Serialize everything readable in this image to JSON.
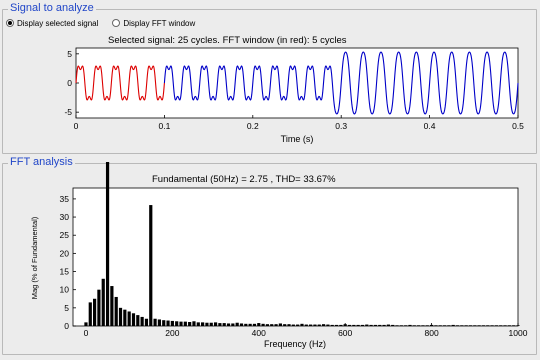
{
  "signal_panel": {
    "legend": "Signal to analyze",
    "radio_display_signal": "Display selected signal",
    "radio_display_fft": "Display FFT window",
    "selected": "signal",
    "plot_title": "Selected signal: 25 cycles. FFT window (in red): 5 cycles"
  },
  "fft_panel": {
    "legend": "FFT analysis",
    "plot_title": "Fundamental (50Hz) = 2.75 , THD= 33.67%"
  },
  "colors": {
    "fft_window": "#dd0000",
    "signal": "#0000c8",
    "legend_text": "#2146c8",
    "bars": "#000000"
  },
  "chart_data": [
    {
      "type": "line",
      "title": "Selected signal: 25 cycles. FFT window (in red): 5 cycles",
      "xlabel": "Time (s)",
      "ylabel": "",
      "xlim": [
        0,
        0.5
      ],
      "ylim": [
        -6,
        6
      ],
      "x_ticks": [
        0,
        0.1,
        0.2,
        0.3,
        0.4,
        0.5
      ],
      "x_tick_labels": [
        "0",
        "0.1",
        "0.2",
        "0.3",
        "0.4",
        "0.5"
      ],
      "y_ticks": [
        -5,
        0,
        5
      ],
      "y_tick_labels": [
        "-5",
        "0",
        "5"
      ],
      "series": [
        {
          "role": "fft-window",
          "t_start": 0.0,
          "t_end": 0.1,
          "frequency_hz": 50,
          "amplitude": 3.2,
          "harmonic3_amplitude": 0.9
        },
        {
          "role": "signal",
          "t_start": 0.1,
          "t_end": 0.29,
          "frequency_hz": 50,
          "amplitude": 3.2,
          "harmonic3_amplitude": 0.9
        },
        {
          "role": "signal",
          "t_start": 0.29,
          "t_end": 0.5,
          "frequency_hz": 50,
          "amplitude": 5.6,
          "harmonic3_amplitude": 0.3
        }
      ]
    },
    {
      "type": "bar",
      "title": "Fundamental (50Hz) = 2.75 , THD= 33.67%",
      "xlabel": "Frequency (Hz)",
      "ylabel": "Mag (% of Fundamental)",
      "xlim": [
        -30,
        1000
      ],
      "ylim": [
        0,
        38
      ],
      "x_ticks": [
        0,
        200,
        400,
        600,
        800,
        1000
      ],
      "x_tick_labels": [
        "0",
        "200",
        "400",
        "600",
        "800",
        "1000"
      ],
      "y_ticks": [
        0,
        5,
        10,
        15,
        20,
        25,
        30,
        35
      ],
      "y_tick_labels": [
        "0",
        "5",
        "10",
        "15",
        "20",
        "25",
        "30",
        "35"
      ],
      "bars": [
        {
          "f": 0,
          "v": 1.0
        },
        {
          "f": 10,
          "v": 6.5
        },
        {
          "f": 20,
          "v": 7.5
        },
        {
          "f": 30,
          "v": 10.0
        },
        {
          "f": 40,
          "v": 13.0
        },
        {
          "f": 50,
          "v": 100.0
        },
        {
          "f": 60,
          "v": 11.0
        },
        {
          "f": 70,
          "v": 8.0
        },
        {
          "f": 80,
          "v": 5.0
        },
        {
          "f": 90,
          "v": 4.5
        },
        {
          "f": 100,
          "v": 4.0
        },
        {
          "f": 110,
          "v": 3.5
        },
        {
          "f": 120,
          "v": 3.0
        },
        {
          "f": 130,
          "v": 2.5
        },
        {
          "f": 140,
          "v": 2.0
        },
        {
          "f": 150,
          "v": 33.3
        },
        {
          "f": 160,
          "v": 2.0
        },
        {
          "f": 170,
          "v": 1.8
        },
        {
          "f": 180,
          "v": 1.6
        },
        {
          "f": 190,
          "v": 1.5
        },
        {
          "f": 200,
          "v": 1.4
        },
        {
          "f": 210,
          "v": 1.3
        },
        {
          "f": 220,
          "v": 1.2
        },
        {
          "f": 230,
          "v": 1.2
        },
        {
          "f": 240,
          "v": 1.1
        },
        {
          "f": 250,
          "v": 1.3
        },
        {
          "f": 260,
          "v": 1.0
        },
        {
          "f": 270,
          "v": 1.0
        },
        {
          "f": 280,
          "v": 0.9
        },
        {
          "f": 290,
          "v": 0.9
        },
        {
          "f": 300,
          "v": 1.0
        },
        {
          "f": 310,
          "v": 0.8
        },
        {
          "f": 320,
          "v": 0.8
        },
        {
          "f": 330,
          "v": 0.7
        },
        {
          "f": 340,
          "v": 0.7
        },
        {
          "f": 350,
          "v": 0.9
        },
        {
          "f": 360,
          "v": 0.7
        },
        {
          "f": 370,
          "v": 0.6
        },
        {
          "f": 380,
          "v": 0.6
        },
        {
          "f": 390,
          "v": 0.6
        },
        {
          "f": 400,
          "v": 0.8
        },
        {
          "f": 410,
          "v": 0.6
        },
        {
          "f": 420,
          "v": 0.5
        },
        {
          "f": 430,
          "v": 0.5
        },
        {
          "f": 440,
          "v": 0.5
        },
        {
          "f": 450,
          "v": 0.7
        },
        {
          "f": 460,
          "v": 0.5
        },
        {
          "f": 470,
          "v": 0.5
        },
        {
          "f": 480,
          "v": 0.4
        },
        {
          "f": 490,
          "v": 0.4
        },
        {
          "f": 500,
          "v": 0.6
        },
        {
          "f": 510,
          "v": 0.4
        },
        {
          "f": 520,
          "v": 0.4
        },
        {
          "f": 530,
          "v": 0.4
        },
        {
          "f": 540,
          "v": 0.4
        },
        {
          "f": 550,
          "v": 0.5
        },
        {
          "f": 560,
          "v": 0.4
        },
        {
          "f": 570,
          "v": 0.3
        },
        {
          "f": 580,
          "v": 0.3
        },
        {
          "f": 590,
          "v": 0.3
        },
        {
          "f": 600,
          "v": 0.5
        },
        {
          "f": 610,
          "v": 0.3
        },
        {
          "f": 620,
          "v": 0.3
        },
        {
          "f": 630,
          "v": 0.3
        },
        {
          "f": 640,
          "v": 0.3
        },
        {
          "f": 650,
          "v": 0.4
        },
        {
          "f": 660,
          "v": 0.3
        },
        {
          "f": 670,
          "v": 0.3
        },
        {
          "f": 680,
          "v": 0.3
        },
        {
          "f": 690,
          "v": 0.3
        },
        {
          "f": 700,
          "v": 0.4
        },
        {
          "f": 710,
          "v": 0.3
        },
        {
          "f": 720,
          "v": 0.2
        },
        {
          "f": 730,
          "v": 0.2
        },
        {
          "f": 740,
          "v": 0.2
        },
        {
          "f": 750,
          "v": 0.3
        },
        {
          "f": 760,
          "v": 0.2
        },
        {
          "f": 770,
          "v": 0.2
        },
        {
          "f": 780,
          "v": 0.2
        },
        {
          "f": 790,
          "v": 0.2
        },
        {
          "f": 800,
          "v": 0.3
        },
        {
          "f": 810,
          "v": 0.2
        },
        {
          "f": 820,
          "v": 0.2
        },
        {
          "f": 830,
          "v": 0.2
        },
        {
          "f": 840,
          "v": 0.2
        },
        {
          "f": 850,
          "v": 0.3
        },
        {
          "f": 860,
          "v": 0.2
        },
        {
          "f": 870,
          "v": 0.2
        },
        {
          "f": 880,
          "v": 0.2
        },
        {
          "f": 890,
          "v": 0.2
        },
        {
          "f": 900,
          "v": 0.2
        },
        {
          "f": 910,
          "v": 0.2
        },
        {
          "f": 920,
          "v": 0.2
        },
        {
          "f": 930,
          "v": 0.2
        },
        {
          "f": 940,
          "v": 0.2
        },
        {
          "f": 950,
          "v": 0.2
        },
        {
          "f": 960,
          "v": 0.2
        },
        {
          "f": 970,
          "v": 0.2
        },
        {
          "f": 980,
          "v": 0.2
        },
        {
          "f": 990,
          "v": 0.2
        },
        {
          "f": 1000,
          "v": 0.2
        }
      ]
    }
  ]
}
